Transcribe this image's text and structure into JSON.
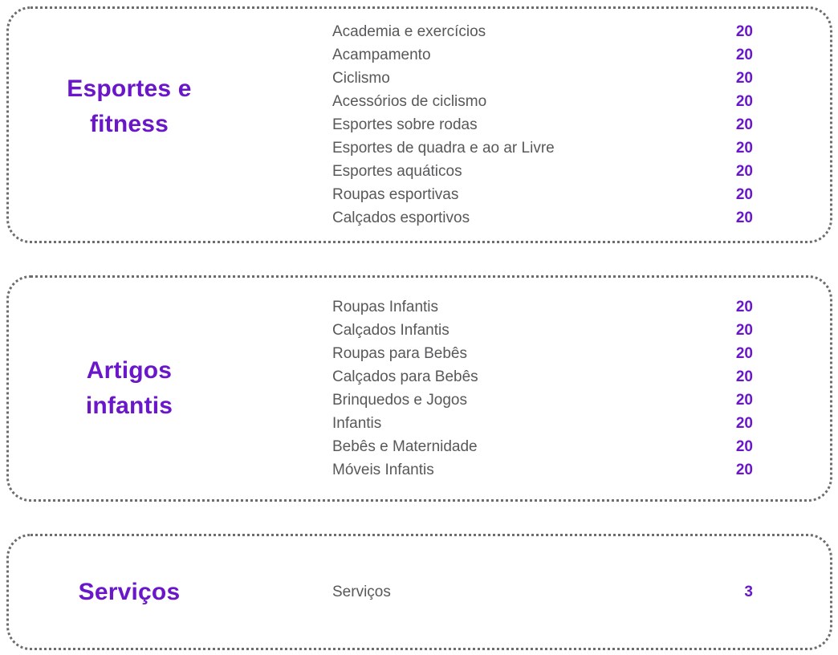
{
  "theme": {
    "accent_color": "#6a16c9",
    "item_text_color": "#58585a",
    "border_color": "#6c6c6c"
  },
  "sections": [
    {
      "id": "esportes-e-fitness",
      "title": "Esportes e fitness",
      "title_lines": [
        "Esportes e",
        "fitness"
      ],
      "items": [
        {
          "label": "Academia e exercícios",
          "value": "20"
        },
        {
          "label": "Acampamento",
          "value": "20"
        },
        {
          "label": "Ciclismo",
          "value": "20"
        },
        {
          "label": "Acessórios de ciclismo",
          "value": "20"
        },
        {
          "label": "Esportes sobre rodas",
          "value": "20"
        },
        {
          "label": "Esportes de quadra e ao ar Livre",
          "value": "20"
        },
        {
          "label": "Esportes aquáticos",
          "value": "20"
        },
        {
          "label": "Roupas esportivas",
          "value": "20"
        },
        {
          "label": "Calçados esportivos",
          "value": "20"
        }
      ]
    },
    {
      "id": "artigos-infantis",
      "title": "Artigos infantis",
      "title_lines": [
        "Artigos",
        "infantis"
      ],
      "items": [
        {
          "label": "Roupas Infantis",
          "value": "20"
        },
        {
          "label": "Calçados Infantis",
          "value": "20"
        },
        {
          "label": "Roupas para Bebês",
          "value": "20"
        },
        {
          "label": "Calçados para Bebês",
          "value": "20"
        },
        {
          "label": "Brinquedos e Jogos",
          "value": "20"
        },
        {
          "label": "Infantis",
          "value": "20"
        },
        {
          "label": "Bebês e Maternidade",
          "value": "20"
        },
        {
          "label": "Móveis Infantis",
          "value": "20"
        }
      ]
    },
    {
      "id": "servicos",
      "title": "Serviços",
      "title_lines": [
        "Serviços"
      ],
      "items": [
        {
          "label": "Serviços",
          "value": "3"
        }
      ]
    }
  ]
}
